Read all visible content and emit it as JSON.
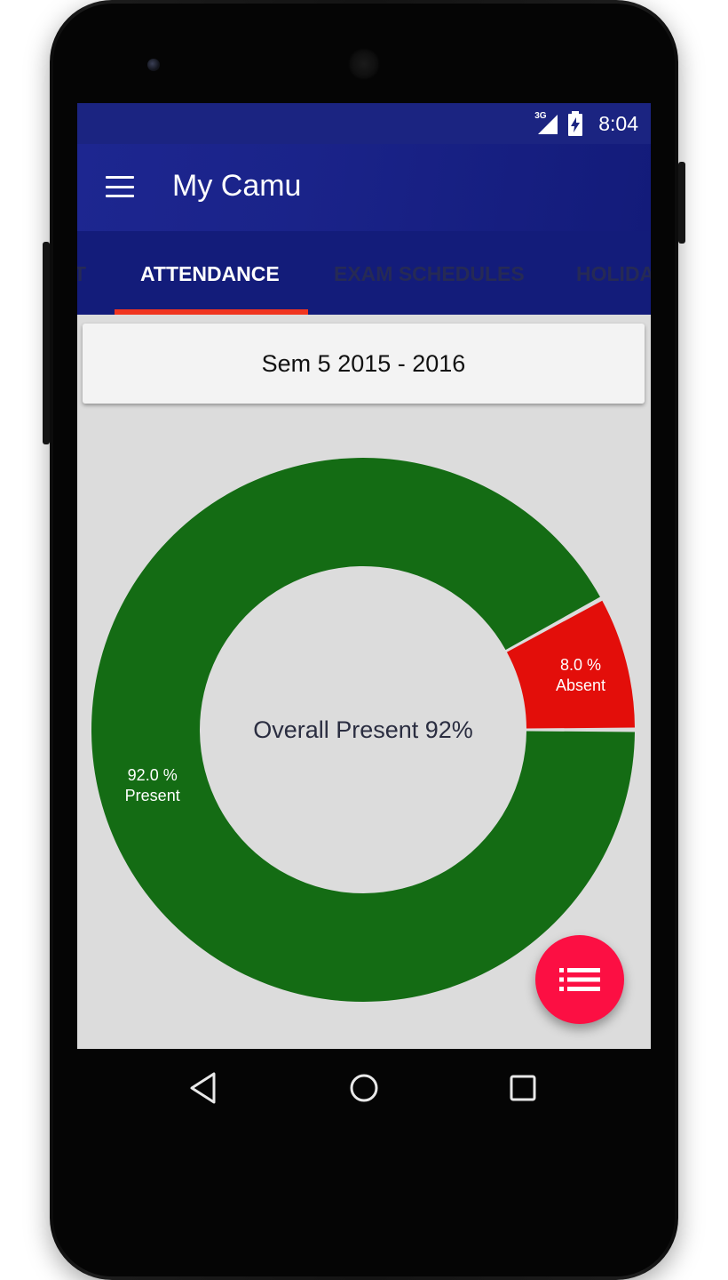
{
  "status_bar": {
    "network": "3G",
    "time": "8:04",
    "icons": [
      "signal-icon",
      "battery-charging-icon"
    ]
  },
  "app_bar": {
    "title": "My Camu",
    "menu_icon": "hamburger-menu-icon"
  },
  "tabs": [
    {
      "label": "T",
      "active": false
    },
    {
      "label": "ATTENDANCE",
      "active": true
    },
    {
      "label": "EXAM SCHEDULES",
      "active": false
    },
    {
      "label": "HOLIDA",
      "active": false
    }
  ],
  "semester": {
    "label": "Sem 5  2015 - 2016"
  },
  "chart_data": {
    "type": "pie",
    "center_label": "Overall Present 92%",
    "slices": [
      {
        "label": "Present",
        "value": 92.0,
        "value_label": "92.0 %",
        "color": "#146c14"
      },
      {
        "label": "Absent",
        "value": 8.0,
        "value_label": "8.0 %",
        "color": "#e30e0a"
      }
    ]
  },
  "fab": {
    "icon": "list-icon"
  },
  "nav": {
    "icons": [
      "back-icon",
      "home-icon",
      "recents-icon"
    ]
  },
  "colors": {
    "status_bar": "#1b2481",
    "app_bar": "#1d2690",
    "tab_bar": "#131c7a",
    "tab_indicator": "#f0351f",
    "fab": "#fc0f43",
    "background": "#dcdcdc"
  }
}
